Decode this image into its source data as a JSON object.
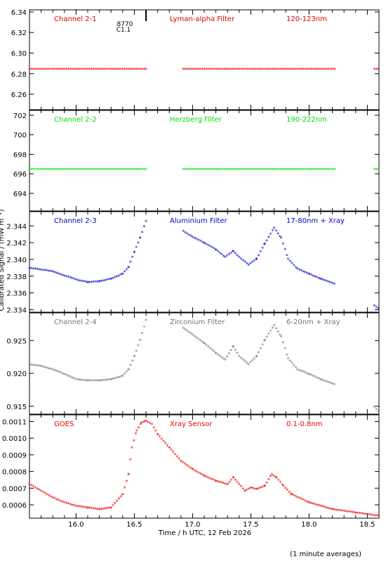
{
  "figure": {
    "y_axis_label": "Calibrated Signal / (mW m⁻²)",
    "x_axis_label": "Time / h UTC, 12 Feb 2026",
    "footnote": "(1 minute averages)",
    "marker_text": "8770",
    "marker_subtext": "C1.1"
  },
  "chart_data": [
    {
      "type": "scatter",
      "channel_label": "Channel 2-1",
      "filter_label": "Lyman-alpha Filter",
      "band_label": "120-123nm",
      "color": "#dd0000",
      "xlim": [
        15.6,
        18.6
      ],
      "ylim": [
        6.245,
        6.342
      ],
      "y_ticks": [
        6.26,
        6.28,
        6.3,
        6.32,
        6.34
      ],
      "y_tick_labels": [
        "6.26",
        "6.28",
        "6.30",
        "6.32",
        "6.34"
      ],
      "series": [
        {
          "x": [
            15.6,
            16.6
          ],
          "y": [
            6.284,
            6.284
          ]
        },
        {
          "x": [
            16.92,
            18.22
          ],
          "y": [
            6.284,
            6.284
          ]
        },
        {
          "x": [
            18.56,
            18.6
          ],
          "y": [
            6.284,
            6.284
          ]
        }
      ]
    },
    {
      "type": "scatter",
      "channel_label": "Channel 2-2",
      "filter_label": "Herzberg Filter",
      "band_label": "190-222nm",
      "color": "#00dd00",
      "xlim": [
        15.6,
        18.6
      ],
      "ylim": [
        692.2,
        702.5
      ],
      "y_ticks": [
        694,
        696,
        698,
        700,
        702
      ],
      "y_tick_labels": [
        "694",
        "696",
        "698",
        "700",
        "702"
      ],
      "series": [
        {
          "x": [
            15.6,
            16.6
          ],
          "y": [
            696.4,
            696.4
          ]
        },
        {
          "x": [
            16.92,
            18.22
          ],
          "y": [
            696.4,
            696.4
          ]
        },
        {
          "x": [
            18.56,
            18.6
          ],
          "y": [
            696.4,
            696.4
          ]
        }
      ]
    },
    {
      "type": "scatter",
      "channel_label": "Channel 2-3",
      "filter_label": "Aluminium Filter",
      "band_label": "17-80nm + Xray",
      "color": "#0000cc",
      "xlim": [
        15.6,
        18.6
      ],
      "ylim": [
        2.3337,
        2.3457
      ],
      "y_ticks": [
        2.334,
        2.336,
        2.338,
        2.34,
        2.342,
        2.344
      ],
      "y_tick_labels": [
        "2.334",
        "2.336",
        "2.338",
        "2.340",
        "2.342",
        "2.344"
      ],
      "series": [
        {
          "x": [
            15.6,
            15.7,
            15.8,
            15.9,
            16.0,
            16.1,
            16.2,
            16.3,
            16.4,
            16.45,
            16.5,
            16.55,
            16.6
          ],
          "y": [
            2.3389,
            2.3387,
            2.3385,
            2.338,
            2.3375,
            2.3372,
            2.3373,
            2.3376,
            2.3382,
            2.339,
            2.3408,
            2.3425,
            2.3445
          ]
        },
        {
          "x": [
            16.92,
            17.0,
            17.1,
            17.2,
            17.28,
            17.35,
            17.4,
            17.48,
            17.55,
            17.62,
            17.7,
            17.76,
            17.82,
            17.9,
            18.0,
            18.1,
            18.22
          ],
          "y": [
            2.3433,
            2.3426,
            2.3419,
            2.3411,
            2.3402,
            2.3409,
            2.3402,
            2.3393,
            2.34,
            2.3418,
            2.3437,
            2.3425,
            2.34,
            2.3388,
            2.3382,
            2.3376,
            2.337
          ]
        },
        {
          "x": [
            18.56,
            18.6
          ],
          "y": [
            2.3344,
            2.334
          ]
        }
      ]
    },
    {
      "type": "scatter",
      "channel_label": "Channel 2-4",
      "filter_label": "Zirconium Filter",
      "band_label": "6-20nm + Xray",
      "color": "#777777",
      "xlim": [
        15.6,
        18.6
      ],
      "ylim": [
        0.9138,
        0.9292
      ],
      "y_ticks": [
        0.915,
        0.92,
        0.925
      ],
      "y_tick_labels": [
        "0.915",
        "0.920",
        "0.925"
      ],
      "series": [
        {
          "x": [
            15.6,
            15.7,
            15.8,
            15.9,
            16.0,
            16.1,
            16.2,
            16.3,
            16.4,
            16.45,
            16.5,
            16.55,
            16.6
          ],
          "y": [
            0.9213,
            0.921,
            0.9205,
            0.9198,
            0.919,
            0.9188,
            0.9188,
            0.919,
            0.9195,
            0.9205,
            0.9225,
            0.925,
            0.928
          ]
        },
        {
          "x": [
            16.92,
            17.0,
            17.1,
            17.2,
            17.28,
            17.35,
            17.4,
            17.48,
            17.55,
            17.62,
            17.7,
            17.76,
            17.82,
            17.9,
            18.0,
            18.1,
            18.22
          ],
          "y": [
            0.9268,
            0.9258,
            0.9245,
            0.923,
            0.922,
            0.924,
            0.9225,
            0.9213,
            0.9225,
            0.925,
            0.9272,
            0.9255,
            0.9222,
            0.9205,
            0.9198,
            0.919,
            0.9182
          ]
        },
        {
          "x": [
            18.56,
            18.6
          ],
          "y": [
            0.9148,
            0.914
          ]
        }
      ]
    },
    {
      "type": "scatter",
      "channel_label": "GOES",
      "filter_label": "Xray Sensor",
      "band_label": "0.1-0.8nm",
      "color": "#ee0000",
      "xlim": [
        15.6,
        18.6
      ],
      "ylim": [
        0.00052,
        0.00114
      ],
      "xticks": [
        16.0,
        16.5,
        17.0,
        17.5,
        18.0,
        18.5
      ],
      "x_tick_labels": [
        "16.0",
        "16.5",
        "17.0",
        "17.5",
        "18.0",
        "18.5"
      ],
      "y_ticks": [
        0.0006,
        0.0007,
        0.0008,
        0.0009,
        0.001,
        0.0011
      ],
      "y_tick_labels": [
        "0.0006",
        "0.0007",
        "0.0008",
        "0.0009",
        "0.0010",
        "0.0011"
      ],
      "series": [
        {
          "x": [
            15.6,
            15.7,
            15.8,
            15.9,
            16.0,
            16.1,
            16.2,
            16.3,
            16.4,
            16.45,
            16.48,
            16.52,
            16.56,
            16.6,
            16.65,
            16.7,
            16.8,
            16.9,
            17.0,
            17.1,
            17.2,
            17.3,
            17.35,
            17.4,
            17.45,
            17.5,
            17.55,
            17.62,
            17.68,
            17.72,
            17.78,
            17.85,
            18.0,
            18.2,
            18.4,
            18.6
          ],
          "y": [
            0.00072,
            0.00068,
            0.00064,
            0.00061,
            0.00059,
            0.00058,
            0.00057,
            0.00058,
            0.00066,
            0.00078,
            0.00094,
            0.00104,
            0.00109,
            0.0011,
            0.00108,
            0.00102,
            0.00094,
            0.00086,
            0.00081,
            0.00077,
            0.00074,
            0.00072,
            0.00076,
            0.00072,
            0.00068,
            0.0007,
            0.00069,
            0.00071,
            0.00078,
            0.00076,
            0.00071,
            0.00066,
            0.00061,
            0.00057,
            0.00055,
            0.00053
          ]
        }
      ]
    }
  ]
}
